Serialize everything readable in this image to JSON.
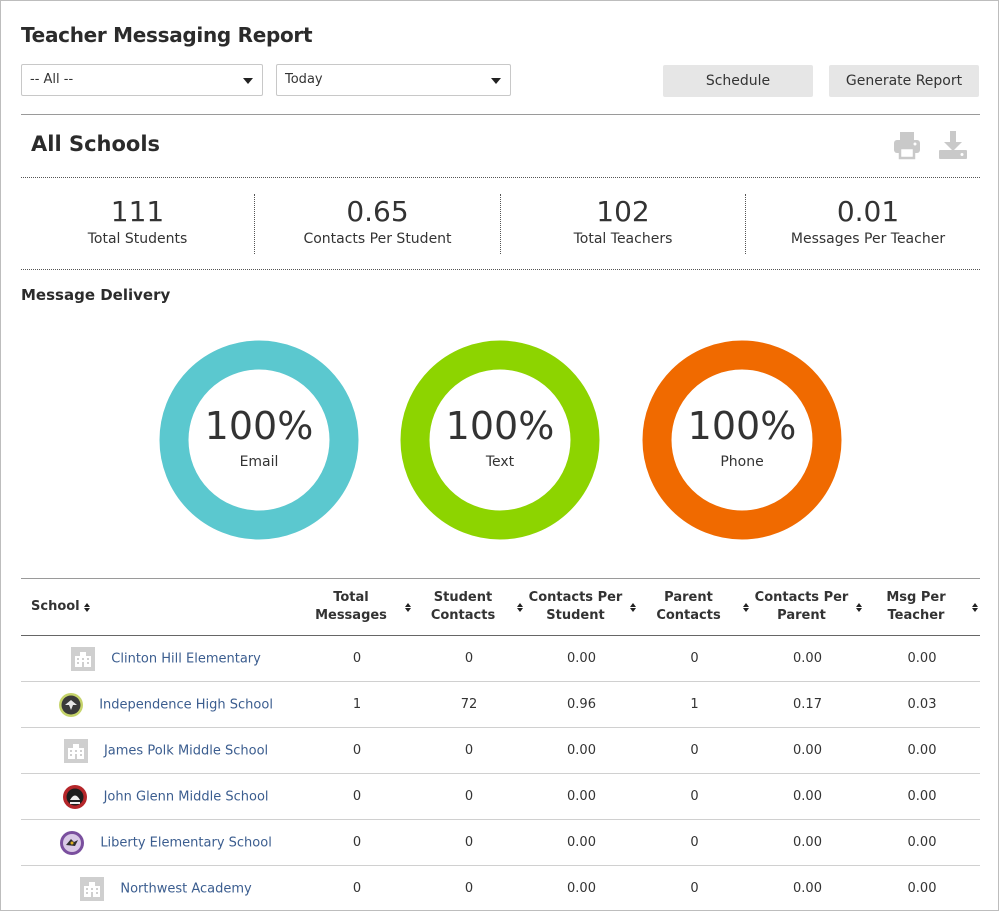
{
  "header": {
    "title": "Teacher Messaging Report",
    "school_filter": "-- All --",
    "date_filter": "Today",
    "schedule_label": "Schedule",
    "generate_label": "Generate Report"
  },
  "section": {
    "title": "All Schools",
    "print_icon": "print-icon",
    "download_icon": "download-icon"
  },
  "stats": [
    {
      "value": "111",
      "label": "Total Students"
    },
    {
      "value": "0.65",
      "label": "Contacts Per Student"
    },
    {
      "value": "102",
      "label": "Total Teachers"
    },
    {
      "value": "0.01",
      "label": "Messages Per Teacher"
    }
  ],
  "delivery": {
    "title": "Message Delivery",
    "items": [
      {
        "percent": "100%",
        "label": "Email",
        "fraction": 1.0,
        "color": "#5bc8cf"
      },
      {
        "percent": "100%",
        "label": "Text",
        "fraction": 1.0,
        "color": "#8dd400"
      },
      {
        "percent": "100%",
        "label": "Phone",
        "fraction": 1.0,
        "color": "#f06a00"
      }
    ]
  },
  "table": {
    "columns": [
      {
        "line1": "School",
        "line2": ""
      },
      {
        "line1": "Total",
        "line2": "Messages"
      },
      {
        "line1": "Student",
        "line2": "Contacts"
      },
      {
        "line1": "Contacts Per",
        "line2": "Student"
      },
      {
        "line1": "Parent",
        "line2": "Contacts"
      },
      {
        "line1": "Contacts Per",
        "line2": "Parent"
      },
      {
        "line1": "Msg Per",
        "line2": "Teacher"
      }
    ],
    "rows": [
      {
        "school": "Clinton Hill Elementary",
        "logo": "building-icon",
        "total_messages": "0",
        "student_contacts": "0",
        "contacts_per_student": "0.00",
        "parent_contacts": "0",
        "contacts_per_parent": "0.00",
        "msg_per_teacher": "0.00"
      },
      {
        "school": "Independence High School",
        "logo": "eagle-logo",
        "total_messages": "1",
        "student_contacts": "72",
        "contacts_per_student": "0.96",
        "parent_contacts": "1",
        "contacts_per_parent": "0.17",
        "msg_per_teacher": "0.03"
      },
      {
        "school": "James Polk Middle School",
        "logo": "building-icon",
        "total_messages": "0",
        "student_contacts": "0",
        "contacts_per_student": "0.00",
        "parent_contacts": "0",
        "contacts_per_parent": "0.00",
        "msg_per_teacher": "0.00"
      },
      {
        "school": "John Glenn Middle School",
        "logo": "mascot-logo",
        "total_messages": "0",
        "student_contacts": "0",
        "contacts_per_student": "0.00",
        "parent_contacts": "0",
        "contacts_per_parent": "0.00",
        "msg_per_teacher": "0.00"
      },
      {
        "school": "Liberty Elementary School",
        "logo": "bird-logo",
        "total_messages": "0",
        "student_contacts": "0",
        "contacts_per_student": "0.00",
        "parent_contacts": "0",
        "contacts_per_parent": "0.00",
        "msg_per_teacher": "0.00"
      },
      {
        "school": "Northwest Academy",
        "logo": "building-icon",
        "total_messages": "0",
        "student_contacts": "0",
        "contacts_per_student": "0.00",
        "parent_contacts": "0",
        "contacts_per_parent": "0.00",
        "msg_per_teacher": "0.00"
      }
    ]
  }
}
